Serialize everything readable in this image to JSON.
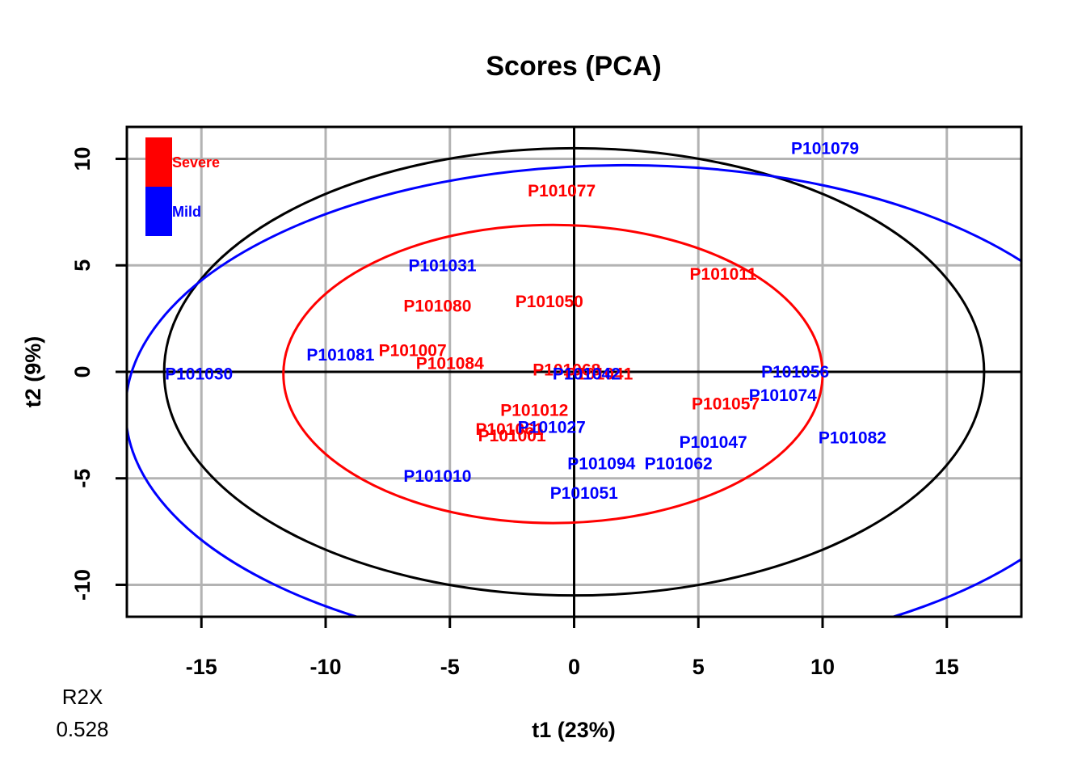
{
  "chart_data": {
    "type": "scatter",
    "title": "Scores (PCA)",
    "xlabel": "t1 (23%)",
    "ylabel": "t2 (9%)",
    "xlim": [
      -18,
      18
    ],
    "ylim": [
      -11.5,
      11.5
    ],
    "x_ticks": [
      -15,
      -10,
      -5,
      0,
      5,
      10,
      15
    ],
    "y_ticks": [
      -10,
      -5,
      0,
      5,
      10
    ],
    "grid": true,
    "legend": {
      "placement": "top-left",
      "entries": [
        {
          "name": "Severe",
          "color": "#ff0000"
        },
        {
          "name": "Mild",
          "color": "#0000ff"
        }
      ]
    },
    "ellipses": [
      {
        "color": "#000000",
        "center": [
          0,
          0
        ],
        "radius_x": 16.5,
        "radius_y": 10.5
      },
      {
        "color": "#ff0000",
        "center": [
          -0.85,
          -0.1
        ],
        "radius_x": 10.85,
        "radius_y": 7.0
      },
      {
        "color": "#0000ff",
        "center": [
          2.05,
          -1.8
        ],
        "radius_x": 20.1,
        "radius_y": 11.5
      }
    ],
    "series": [
      {
        "name": "Severe",
        "color": "#ff0000",
        "points": [
          {
            "label": "P101077",
            "x": -0.5,
            "y": 8.5
          },
          {
            "label": "P101011",
            "x": 6.0,
            "y": 4.6
          },
          {
            "label": "P101080",
            "x": -5.5,
            "y": 3.1
          },
          {
            "label": "P101050",
            "x": -1.0,
            "y": 3.3
          },
          {
            "label": "P101007",
            "x": -6.5,
            "y": 1.0
          },
          {
            "label": "P101084",
            "x": -5.0,
            "y": 0.4
          },
          {
            "label": "P101068",
            "x": -0.3,
            "y": 0.1
          },
          {
            "label": "P101041",
            "x": 1.0,
            "y": -0.1
          },
          {
            "label": "P101012",
            "x": -1.6,
            "y": -1.8
          },
          {
            "label": "P101057",
            "x": 6.1,
            "y": -1.5
          },
          {
            "label": "P101061",
            "x": -2.6,
            "y": -2.7
          },
          {
            "label": "P101001",
            "x": -2.5,
            "y": -3.0
          }
        ]
      },
      {
        "name": "Mild",
        "color": "#0000ff",
        "points": [
          {
            "label": "P101079",
            "x": 10.1,
            "y": 10.5
          },
          {
            "label": "P101031",
            "x": -5.3,
            "y": 5.0
          },
          {
            "label": "P101081",
            "x": -9.4,
            "y": 0.8
          },
          {
            "label": "P101030",
            "x": -15.1,
            "y": -0.1
          },
          {
            "label": "P101042",
            "x": 0.5,
            "y": -0.1
          },
          {
            "label": "P101056",
            "x": 8.9,
            "y": 0.0
          },
          {
            "label": "P101074",
            "x": 8.4,
            "y": -1.1
          },
          {
            "label": "P101027",
            "x": -0.9,
            "y": -2.6
          },
          {
            "label": "P101047",
            "x": 5.6,
            "y": -3.3
          },
          {
            "label": "P101082",
            "x": 11.2,
            "y": -3.1
          },
          {
            "label": "P101094",
            "x": 1.1,
            "y": -4.3
          },
          {
            "label": "P101062",
            "x": 4.2,
            "y": -4.3
          },
          {
            "label": "P101010",
            "x": -5.5,
            "y": -4.9
          },
          {
            "label": "P101051",
            "x": 0.4,
            "y": -5.7
          }
        ]
      }
    ]
  },
  "footer": {
    "r2x_label": "R2X",
    "r2x_value": "0.528"
  }
}
